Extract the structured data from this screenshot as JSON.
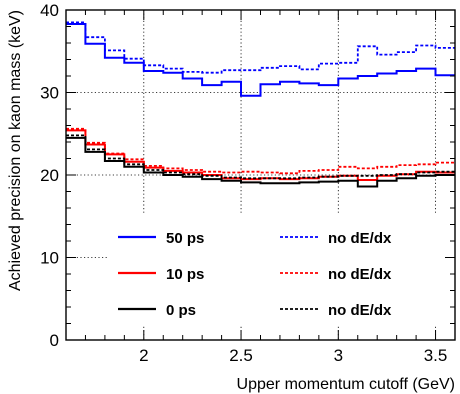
{
  "chart_data": {
    "type": "line",
    "title": "",
    "xlabel": "Upper momentum cutoff (GeV)",
    "ylabel": "Achieved precision on kaon mass (keV)",
    "xlim": [
      1.6,
      3.6
    ],
    "ylim": [
      0,
      40
    ],
    "xticks": [
      "2",
      "2.5",
      "3",
      "3.5"
    ],
    "yticks": [
      "0",
      "10",
      "20",
      "30",
      "40"
    ],
    "x_tick_values": [
      2,
      2.5,
      3,
      3.5
    ],
    "y_tick_values": [
      0,
      10,
      20,
      30,
      40
    ],
    "grid": "dotted",
    "legend_placement": "bottom",
    "bin_edges": [
      1.6,
      1.7,
      1.8,
      1.9,
      2.0,
      2.1,
      2.2,
      2.3,
      2.4,
      2.5,
      2.6,
      2.7,
      2.8,
      2.9,
      3.0,
      3.1,
      3.2,
      3.3,
      3.4,
      3.5,
      3.6
    ],
    "series": [
      {
        "name": "50 ps",
        "color": "#0000ff",
        "dash": "solid",
        "values": [
          38.3,
          35.9,
          34.2,
          33.6,
          32.6,
          32.4,
          31.7,
          30.9,
          31.3,
          29.6,
          31.0,
          31.3,
          31.1,
          30.9,
          31.7,
          32.0,
          32.3,
          32.6,
          32.9,
          32.1
        ]
      },
      {
        "name": "no dE/dx",
        "color": "#0000ff",
        "dash": "dotted",
        "values": [
          38.5,
          36.7,
          35.1,
          34.1,
          33.3,
          32.9,
          32.5,
          32.4,
          32.7,
          32.7,
          33.0,
          33.2,
          32.8,
          33.5,
          33.6,
          35.6,
          34.6,
          34.9,
          35.7,
          35.4
        ]
      },
      {
        "name": "10 ps",
        "color": "#ff0000",
        "dash": "solid",
        "values": [
          25.4,
          23.7,
          22.5,
          21.6,
          20.9,
          20.5,
          20.3,
          20.0,
          19.6,
          19.5,
          19.6,
          19.5,
          19.6,
          19.8,
          19.9,
          19.4,
          19.9,
          20.1,
          20.4,
          20.3
        ]
      },
      {
        "name": "no dE/dx",
        "color": "#ff0000",
        "dash": "dotted",
        "values": [
          25.6,
          23.9,
          22.6,
          21.9,
          21.1,
          20.8,
          20.6,
          20.4,
          20.3,
          20.4,
          20.3,
          20.2,
          20.5,
          20.6,
          21.0,
          20.8,
          21.0,
          21.2,
          21.3,
          21.5
        ]
      },
      {
        "name": "0 ps",
        "color": "#000000",
        "dash": "solid",
        "values": [
          24.5,
          22.8,
          21.7,
          21.0,
          20.3,
          20.0,
          19.8,
          19.5,
          19.3,
          19.1,
          19.0,
          19.0,
          19.1,
          19.2,
          19.3,
          18.6,
          19.3,
          19.6,
          19.9,
          20.0
        ]
      },
      {
        "name": "no dE/dx",
        "color": "#000000",
        "dash": "dotted",
        "values": [
          24.8,
          23.1,
          22.0,
          21.3,
          20.6,
          20.3,
          20.1,
          19.9,
          19.7,
          19.6,
          19.6,
          19.6,
          19.7,
          19.8,
          19.9,
          19.9,
          20.0,
          20.1,
          20.3,
          20.4
        ]
      }
    ],
    "legend": [
      {
        "label": "50 ps",
        "series": 0
      },
      {
        "label": "no dE/dx",
        "series": 1
      },
      {
        "label": "10 ps",
        "series": 2
      },
      {
        "label": "no dE/dx",
        "series": 3
      },
      {
        "label": "0 ps",
        "series": 4
      },
      {
        "label": "no dE/dx",
        "series": 5
      }
    ]
  }
}
